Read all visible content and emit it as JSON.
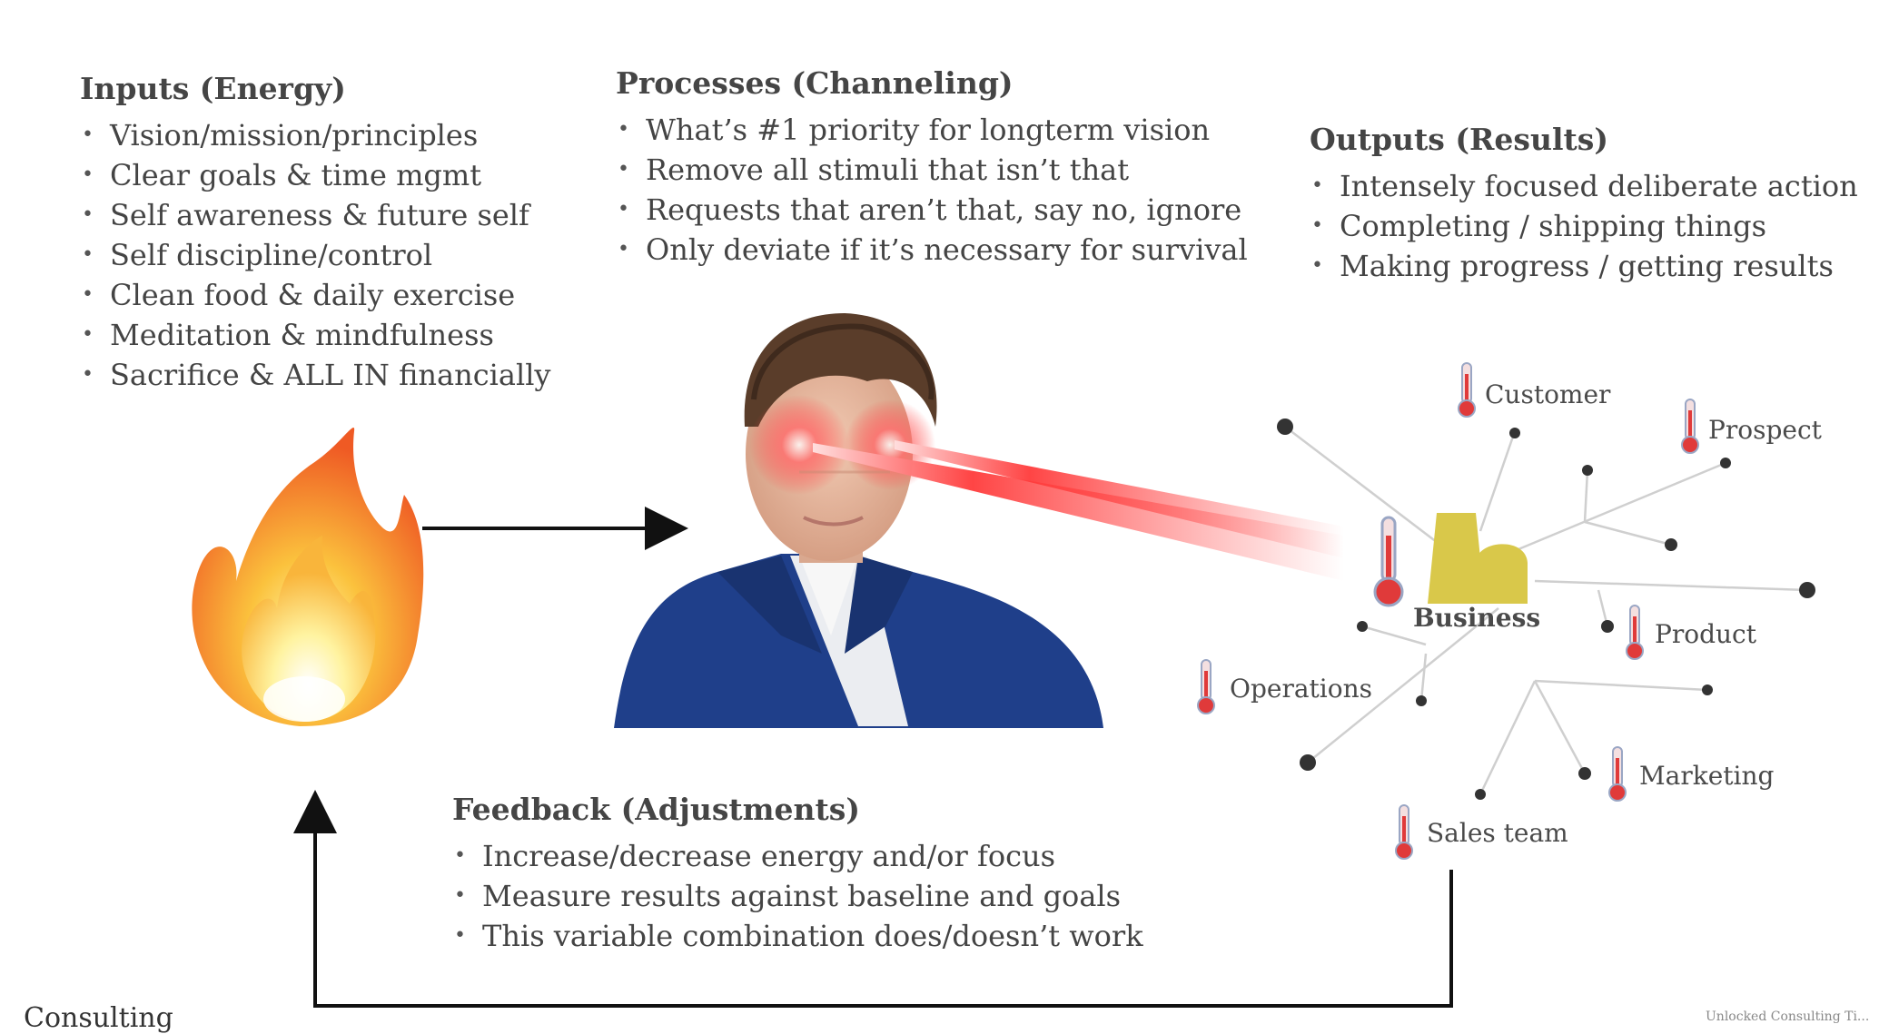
{
  "inputs": {
    "title": "Inputs (Energy)",
    "items": [
      "Vision/mission/principles",
      "Clear goals & time mgmt",
      "Self awareness & future self",
      "Self discipline/control",
      "Clean food & daily exercise",
      "Meditation & mindfulness",
      "Sacrifice & ALL IN financially"
    ]
  },
  "processes": {
    "title": "Processes (Channeling)",
    "items": [
      "What’s #1 priority for longterm vision",
      "Remove all stimuli that isn’t that",
      "Requests that aren’t that, say no, ignore",
      "Only deviate if it’s necessary for survival"
    ]
  },
  "outputs": {
    "title": "Outputs (Results)",
    "items": [
      "Intensely focused deliberate action",
      "Completing / shipping things",
      "Making progress / getting results"
    ]
  },
  "feedback": {
    "title": "Feedback (Adjustments)",
    "items": [
      "Increase/decrease energy and/or focus",
      "Measure results against baseline and goals",
      "This variable combination does/doesn’t work"
    ]
  },
  "network": {
    "center": "Business",
    "nodes": [
      "Customer",
      "Prospect",
      "Product",
      "Operations",
      "Marketing",
      "Sales team"
    ]
  },
  "footer": {
    "left": "Consulting",
    "right": "Unlocked Consulting Ti..."
  },
  "colors": {
    "fire_outer": "#f3702a",
    "fire_inner": "#fbd24a",
    "laser": "#ff3b3b",
    "suit": "#1f3f8a",
    "factory": "#d9c84a",
    "thermo": "#e03a3a"
  },
  "icons": [
    "fire-icon",
    "person-laser-eyes",
    "factory-icon",
    "thermometer-icon"
  ]
}
